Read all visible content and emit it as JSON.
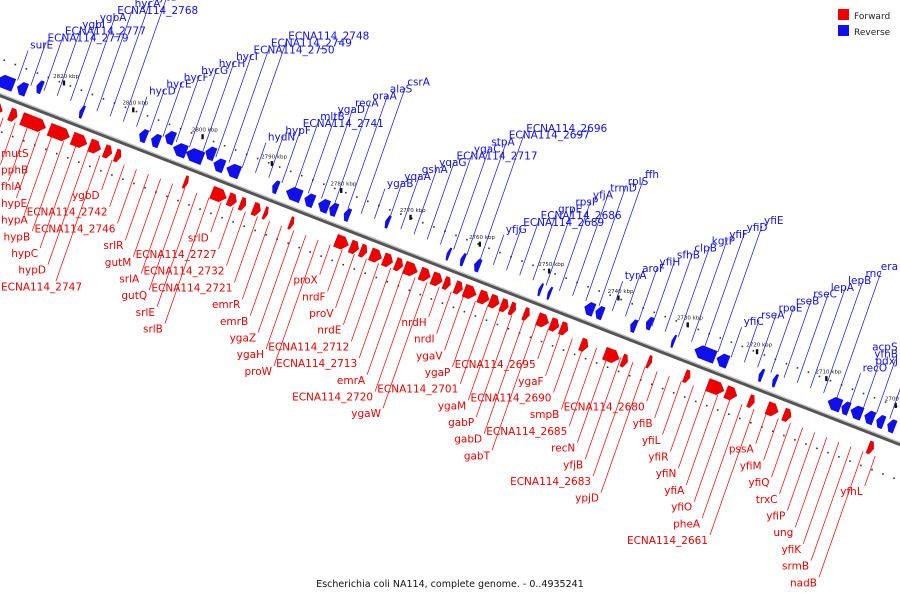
{
  "caption": "Escherichia coli NA114, complete genome. - 0..4935241",
  "legend": [
    {
      "label": "Forward",
      "color": "#ee0000"
    },
    {
      "label": "Reverse",
      "color": "#1010ee"
    }
  ],
  "colors": {
    "forward": "#ee0000",
    "reverse": "#1010ee",
    "backbone": "#555555"
  },
  "ticks": [
    "2820 kbp",
    "2810 kbp",
    "2800 kbp",
    "2790 kbp",
    "2780 kbp",
    "2770 kbp",
    "2760 kbp",
    "2750 kbp",
    "2740 kbp",
    "2730 kbp",
    "2720 kbp",
    "2710 kbp",
    "2700 kbp"
  ],
  "reverse_labels": [
    "surE",
    "ECNA114_2779",
    "ECNA114_2777",
    "ygbI",
    "ygbA",
    "ECNA114_2768",
    "hycA",
    "hycB",
    "hycC",
    "hycD",
    "hycE",
    "hycF",
    "hycG",
    "hycH",
    "hycI",
    "ECNA114_2750",
    "ECNA114_2749",
    "ECNA114_2748",
    "hydN",
    "hypF",
    "ECNA114_2741",
    "mltB",
    "ygaD",
    "recA",
    "oraA",
    "alaS",
    "csrA",
    "ygaB",
    "yqaA",
    "gshA",
    "yqaG",
    "ECNA114_2717",
    "ygaC",
    "stpA",
    "ECNA114_2697",
    "ECNA114_2696",
    "yfjG",
    "ECNA114_2689",
    "ECNA114_2686",
    "grpE",
    "rpsP",
    "yfjA",
    "trmD",
    "rplS",
    "ffh",
    "tyrA",
    "aroF",
    "yfiH",
    "sfhB",
    "clpB",
    "kgtP",
    "yfiF",
    "yfiD",
    "yfiE",
    "yfiC",
    "rseA",
    "rpoE",
    "rseB",
    "rseC",
    "lepA",
    "lepB",
    "rnc",
    "era",
    "recO",
    "pdxJ",
    "yfhB",
    "acpS"
  ],
  "forward_labels": [
    "mutS",
    "pphB",
    "fhlA",
    "hypE",
    "hypA",
    "hypB",
    "hypC",
    "hypD",
    "ECNA114_2747",
    "ygbD",
    "ECNA114_2742",
    "ECNA114_2746",
    "srlR",
    "gutM",
    "srlA",
    "gutQ",
    "srlE",
    "srlB",
    "srlD",
    "ECNA114_2727",
    "ECNA114_2732",
    "ECNA114_2721",
    "emrR",
    "emrB",
    "ygaZ",
    "ygaH",
    "proW",
    "proX",
    "nrdF",
    "proV",
    "nrdE",
    "ECNA114_2712",
    "ECNA114_2713",
    "emrA",
    "ECNA114_2720",
    "ygaW",
    "nrdH",
    "nrdI",
    "ygaV",
    "ygaP",
    "ECNA114_2701",
    "ygaM",
    "gabP",
    "gabD",
    "gabT",
    "ECNA114_2695",
    "ygaF",
    "ECNA114_2690",
    "smpB",
    "ECNA114_2685",
    "recN",
    "yfjB",
    "ECNA114_2683",
    "ypjD",
    "ECNA114_2680",
    "yfiB",
    "yfiL",
    "yfiR",
    "yfiN",
    "yfiA",
    "yfiO",
    "pheA",
    "ECNA114_2661",
    "pssA",
    "yfiM",
    "yfiQ",
    "trxC",
    "yfiP",
    "ung",
    "yfiK",
    "srmB",
    "nadB",
    "yfhL"
  ]
}
